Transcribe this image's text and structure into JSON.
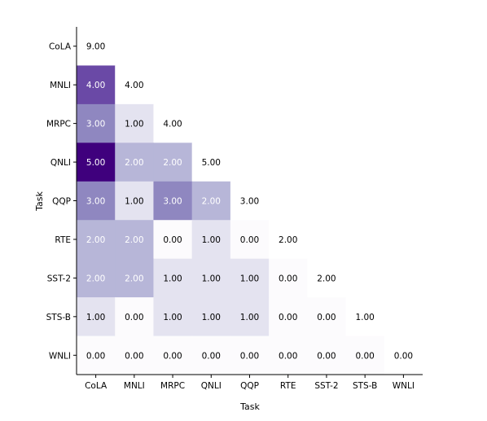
{
  "chart_data": {
    "type": "heatmap",
    "title": "",
    "xlabel": "Task",
    "ylabel": "Task",
    "categories": [
      "CoLA",
      "MNLI",
      "MRPC",
      "QNLI",
      "QQP",
      "RTE",
      "SST-2",
      "STS-B",
      "WNLI"
    ],
    "color_scale": {
      "low": "#fcfbfd",
      "high": "#3f007d",
      "vmin": 0,
      "vmax": 5,
      "masked_upper_triangle": true
    },
    "matrix": [
      [
        9.0,
        null,
        null,
        null,
        null,
        null,
        null,
        null,
        null
      ],
      [
        4.0,
        4.0,
        null,
        null,
        null,
        null,
        null,
        null,
        null
      ],
      [
        3.0,
        1.0,
        4.0,
        null,
        null,
        null,
        null,
        null,
        null
      ],
      [
        5.0,
        2.0,
        2.0,
        5.0,
        null,
        null,
        null,
        null,
        null
      ],
      [
        3.0,
        1.0,
        3.0,
        2.0,
        3.0,
        null,
        null,
        null,
        null
      ],
      [
        2.0,
        2.0,
        0.0,
        1.0,
        0.0,
        2.0,
        null,
        null,
        null
      ],
      [
        2.0,
        2.0,
        1.0,
        1.0,
        1.0,
        0.0,
        2.0,
        null,
        null
      ],
      [
        1.0,
        0.0,
        1.0,
        1.0,
        1.0,
        0.0,
        0.0,
        1.0,
        null
      ],
      [
        0.0,
        0.0,
        0.0,
        0.0,
        0.0,
        0.0,
        0.0,
        0.0,
        0.0
      ]
    ],
    "value_format": "2 decimals",
    "text_color_light": "#ffffff",
    "text_color_dark": "#000000"
  }
}
